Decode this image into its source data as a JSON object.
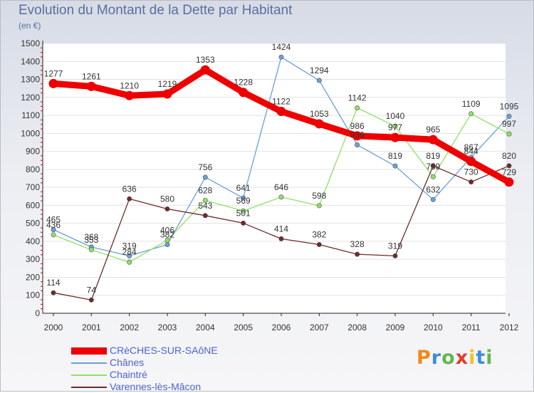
{
  "title": "Evolution du Montant de la Dette par Habitant",
  "subtitle": "(en €)",
  "brand": {
    "text": "Proxiti",
    "colors": [
      "#f08a1c",
      "#3a8fd8",
      "#62b84a",
      "#e23b2e",
      "#f2c21d",
      "#3a8fd8",
      "#62b84a"
    ]
  },
  "chart_data": {
    "type": "line",
    "title": "Evolution du Montant de la Dette par Habitant",
    "subtitle": "(en €)",
    "xlabel": "",
    "ylabel": "",
    "categories": [
      "2000",
      "2001",
      "2002",
      "2003",
      "2004",
      "2005",
      "2006",
      "2007",
      "2008",
      "2009",
      "2010",
      "2011",
      "2012"
    ],
    "ylim": [
      0,
      1500
    ],
    "yticks": [
      0,
      100,
      200,
      300,
      400,
      500,
      600,
      700,
      800,
      900,
      1000,
      1100,
      1200,
      1300,
      1400,
      1500
    ],
    "grid": "horizontal",
    "legend": "bottom-left",
    "series": [
      {
        "name": "CRèCHES-SUR-SAôNE",
        "color": "#ee0000",
        "width": 9,
        "values": [
          1277,
          1261,
          1210,
          1219,
          1353,
          1228,
          1122,
          1053,
          986,
          977,
          965,
          844,
          729
        ]
      },
      {
        "name": "Chânes",
        "color": "#6aa0d8",
        "width": 1.3,
        "values": [
          465,
          368,
          319,
          382,
          756,
          641,
          1424,
          1294,
          936,
          819,
          632,
          867,
          1095
        ]
      },
      {
        "name": "Chaintré",
        "color": "#8fe066",
        "width": 1.3,
        "values": [
          436,
          353,
          284,
          406,
          628,
          569,
          646,
          598,
          1142,
          1040,
          759,
          1109,
          997
        ]
      },
      {
        "name": "Varennes-lès-Mâcon",
        "color": "#6e2a2a",
        "width": 1.3,
        "values": [
          114,
          74,
          636,
          580,
          543,
          501,
          414,
          382,
          328,
          319,
          819,
          730,
          820
        ]
      }
    ]
  }
}
